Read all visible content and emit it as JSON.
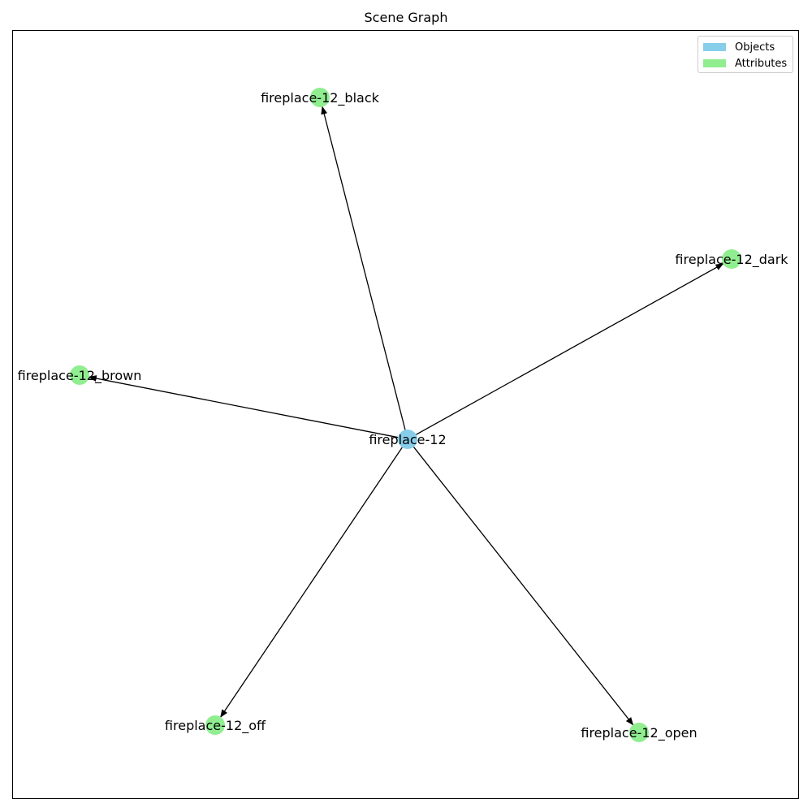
{
  "title": "Scene Graph",
  "legend": [
    {
      "label": "Objects",
      "color": "#87CEEB"
    },
    {
      "label": "Attributes",
      "color": "#90EE90"
    }
  ],
  "nodes": [
    {
      "id": "fireplace-12",
      "label": "fireplace-12",
      "kind": "object"
    },
    {
      "id": "fireplace-12_black",
      "label": "fireplace-12_black",
      "kind": "attribute"
    },
    {
      "id": "fireplace-12_dark",
      "label": "fireplace-12_dark",
      "kind": "attribute"
    },
    {
      "id": "fireplace-12_brown",
      "label": "fireplace-12_brown",
      "kind": "attribute"
    },
    {
      "id": "fireplace-12_off",
      "label": "fireplace-12_off",
      "kind": "attribute"
    },
    {
      "id": "fireplace-12_open",
      "label": "fireplace-12_open",
      "kind": "attribute"
    }
  ],
  "edges": [
    {
      "from": "fireplace-12",
      "to": "fireplace-12_black"
    },
    {
      "from": "fireplace-12",
      "to": "fireplace-12_dark"
    },
    {
      "from": "fireplace-12",
      "to": "fireplace-12_brown"
    },
    {
      "from": "fireplace-12",
      "to": "fireplace-12_off"
    },
    {
      "from": "fireplace-12",
      "to": "fireplace-12_open"
    }
  ]
}
